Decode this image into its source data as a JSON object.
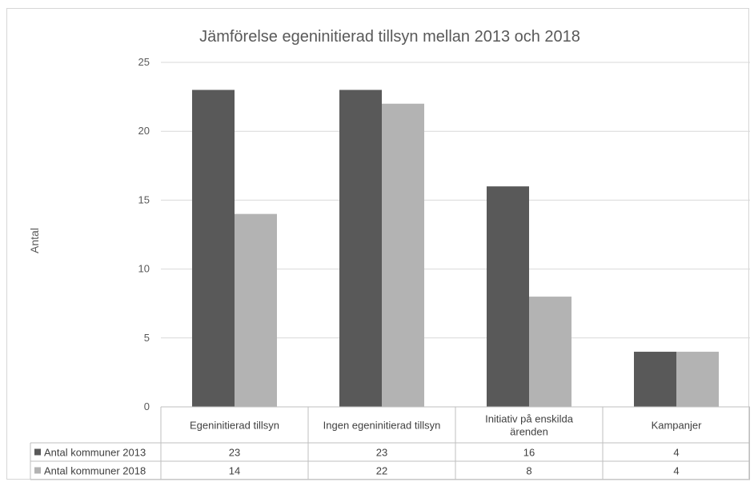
{
  "chart_data": {
    "type": "bar",
    "title": "Jämförelse egeninitierad tillsyn mellan 2013 och 2018",
    "xlabel": "",
    "ylabel": "Antal",
    "ylim": [
      0,
      25
    ],
    "yticks": [
      "0",
      "5",
      "10",
      "15",
      "20",
      "25"
    ],
    "grid": true,
    "legend": "table-bottom",
    "categories": [
      [
        "Egeninitierad tillsyn"
      ],
      [
        "Ingen egeninitierad tillsyn"
      ],
      [
        "Initiativ på enskilda",
        "ärenden"
      ],
      [
        "Kampanjer"
      ]
    ],
    "series": [
      {
        "name": "Antal kommuner 2013",
        "color": "#595959",
        "values": [
          23,
          23,
          16,
          4
        ],
        "labels": [
          "23",
          "23",
          "16",
          "4"
        ]
      },
      {
        "name": "Antal kommuner 2018",
        "color": "#b3b3b3",
        "values": [
          14,
          22,
          8,
          4
        ],
        "labels": [
          "14",
          "22",
          "8",
          "4"
        ]
      }
    ]
  }
}
